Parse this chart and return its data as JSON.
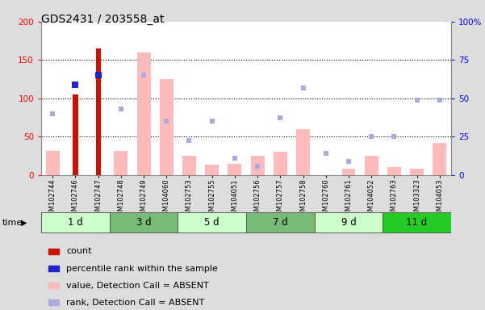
{
  "title": "GDS2431 / 203558_at",
  "samples": [
    "GSM102744",
    "GSM102746",
    "GSM102747",
    "GSM102748",
    "GSM102749",
    "GSM104060",
    "GSM102753",
    "GSM102755",
    "GSM104051",
    "GSM102756",
    "GSM102757",
    "GSM102758",
    "GSM102760",
    "GSM102761",
    "GSM104052",
    "GSM102763",
    "GSM103323",
    "GSM104053"
  ],
  "time_groups": [
    {
      "label": "1 d",
      "start": 0,
      "end": 3,
      "color": "#ccffcc"
    },
    {
      "label": "3 d",
      "start": 3,
      "end": 6,
      "color": "#66bb66"
    },
    {
      "label": "5 d",
      "start": 6,
      "end": 9,
      "color": "#ccffcc"
    },
    {
      "label": "7 d",
      "start": 9,
      "end": 12,
      "color": "#66bb66"
    },
    {
      "label": "9 d",
      "start": 12,
      "end": 15,
      "color": "#ccffcc"
    },
    {
      "label": "11 d",
      "start": 15,
      "end": 18,
      "color": "#22cc22"
    }
  ],
  "count_values": [
    null,
    105,
    165,
    null,
    null,
    null,
    null,
    null,
    null,
    null,
    null,
    null,
    null,
    null,
    null,
    null,
    null,
    null
  ],
  "percentile_values": [
    null,
    118,
    130,
    null,
    null,
    null,
    null,
    null,
    null,
    null,
    null,
    null,
    null,
    null,
    null,
    null,
    null,
    null
  ],
  "value_absent": [
    32,
    null,
    null,
    32,
    160,
    125,
    25,
    14,
    15,
    25,
    30,
    60,
    null,
    8,
    25,
    10,
    8,
    42
  ],
  "rank_absent": [
    80,
    null,
    null,
    86,
    130,
    70,
    45,
    70,
    22,
    12,
    75,
    114,
    28,
    18,
    50,
    50,
    98,
    98
  ],
  "ylim_left": [
    0,
    200
  ],
  "right_ticks": [
    0,
    50,
    100,
    150,
    200
  ],
  "right_tick_labels": [
    "0",
    "25",
    "50",
    "75",
    "100%"
  ],
  "left_ticks": [
    0,
    50,
    100,
    150,
    200
  ],
  "left_tick_labels": [
    "0",
    "50",
    "100",
    "150",
    "200"
  ],
  "background_plot": "#ffffff",
  "background_fig": "#dddddd",
  "color_count": "#cc1100",
  "color_percentile": "#2222cc",
  "color_value_absent": "#ffbbbb",
  "color_rank_absent": "#aaaadd",
  "legend_labels": [
    "count",
    "percentile rank within the sample",
    "value, Detection Call = ABSENT",
    "rank, Detection Call = ABSENT"
  ]
}
